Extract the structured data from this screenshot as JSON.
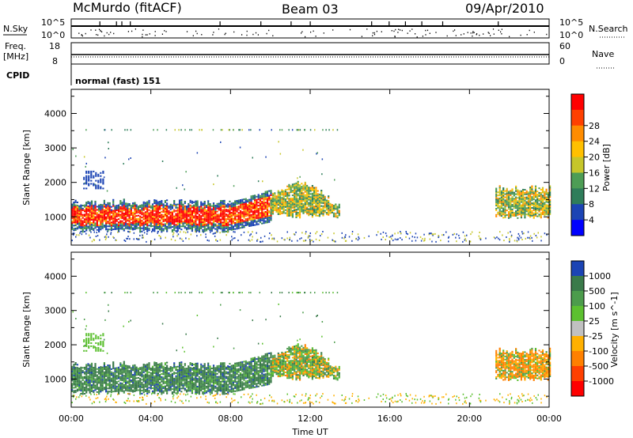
{
  "header": {
    "station": "McMurdo (fitACF)",
    "beam": "Beam 03",
    "date": "09/Apr/2010"
  },
  "nsky_panel": {
    "left_label": "N.Sky",
    "right_label": "N.Search",
    "left_ticks": [
      "10^5",
      "10^0"
    ],
    "right_ticks": [
      "10^5",
      "10^0"
    ]
  },
  "freq_panel": {
    "left_label_1": "Freq.",
    "left_label_2": "[MHz]",
    "right_label": "Nave",
    "left_ticks": [
      "18",
      "8"
    ],
    "right_ticks": [
      "60",
      "0"
    ]
  },
  "cpid_panel": {
    "label": "CPID",
    "mode": "normal (fast) 151"
  },
  "chart_data": [
    {
      "type": "heatmap",
      "name": "power",
      "ylabel": "Slant Range [km]",
      "xlabel": "Time UT",
      "ylim": [
        180,
        4700
      ],
      "xlim_hours": [
        0,
        24
      ],
      "x_ticks": [
        "00:00",
        "04:00",
        "08:00",
        "12:00",
        "16:00",
        "20:00",
        "00:00"
      ],
      "y_ticks": [
        1000,
        2000,
        3000,
        4000
      ],
      "colorbar_label": "Power [dB]",
      "colorbar_ticks": [
        4,
        8,
        12,
        16,
        20,
        24,
        28
      ],
      "colorbar_range": [
        0,
        32
      ],
      "colors": [
        "#0000ff",
        "#1c44b4",
        "#2f7d5a",
        "#4d9d55",
        "#c6c62a",
        "#ffc000",
        "#ff8c00",
        "#ff4000",
        "#ff0000"
      ],
      "regions": [
        {
          "t": [
            0.0,
            10.0
          ],
          "range": [
            600,
            1400
          ],
          "level": "high"
        },
        {
          "t": [
            10.0,
            13.5
          ],
          "range": [
            900,
            1900
          ],
          "level": "medium"
        },
        {
          "t": [
            21.3,
            24.0
          ],
          "range": [
            1000,
            1800
          ],
          "level": "medium"
        }
      ]
    },
    {
      "type": "heatmap",
      "name": "velocity",
      "ylabel": "Slant Range [km]",
      "xlabel": "Time UT",
      "ylim": [
        180,
        4700
      ],
      "xlim_hours": [
        0,
        24
      ],
      "x_ticks": [
        "00:00",
        "04:00",
        "08:00",
        "12:00",
        "16:00",
        "20:00",
        "00:00"
      ],
      "y_ticks": [
        1000,
        2000,
        3000,
        4000
      ],
      "colorbar_label": "Velocity [m s^-1]",
      "colorbar_ticks": [
        "1000",
        "500",
        "100",
        "25",
        "-25",
        "-100",
        "-500",
        "-1000"
      ],
      "colors": [
        "#1c44b4",
        "#3a7a4a",
        "#4c9c4c",
        "#5cc030",
        "#c0c0c0",
        "#ffb000",
        "#ff8000",
        "#ff4000",
        "#ff0000"
      ],
      "regions": [
        {
          "t": [
            0.0,
            10.0
          ],
          "range": [
            600,
            1400
          ],
          "level": "positive"
        },
        {
          "t": [
            10.0,
            13.5
          ],
          "range": [
            900,
            1900
          ],
          "level": "mixed"
        },
        {
          "t": [
            21.3,
            24.0
          ],
          "range": [
            1000,
            1800
          ],
          "level": "negative"
        }
      ]
    }
  ]
}
